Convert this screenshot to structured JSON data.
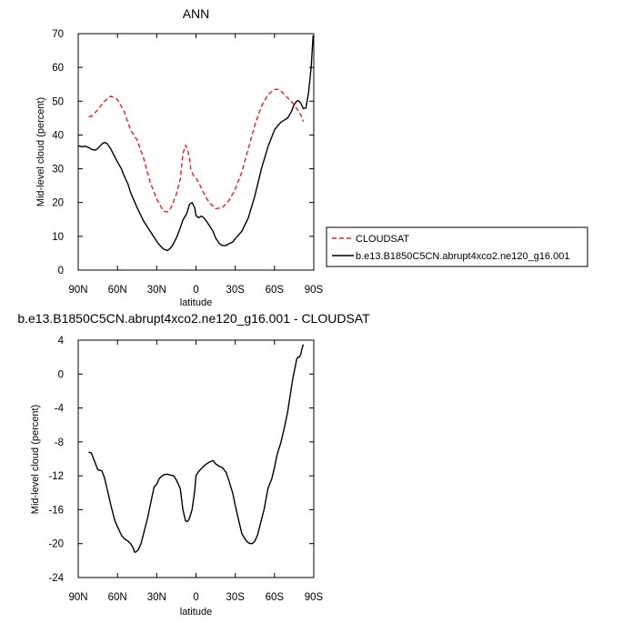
{
  "chart_data": [
    {
      "type": "line",
      "title": "ANN",
      "xlabel": "latitude",
      "ylabel": "Mid-level cloud (percent)",
      "xlim": [
        90,
        -90
      ],
      "ylim": [
        0,
        70
      ],
      "xticks": [
        90,
        60,
        30,
        0,
        -30,
        -60,
        -90
      ],
      "xtick_labels": [
        "90N",
        "60N",
        "30N",
        "0",
        "30S",
        "60S",
        "90S"
      ],
      "yticks": [
        0,
        10,
        20,
        30,
        40,
        50,
        60,
        70
      ],
      "ytick_labels": [
        "0",
        "10",
        "20",
        "30",
        "40",
        "50",
        "60",
        "70"
      ],
      "legend": "right",
      "series": [
        {
          "name": "CLOUDSAT",
          "color": "#e8221f",
          "dash": true,
          "x": [
            82,
            80,
            75,
            70,
            65,
            60,
            55,
            50,
            45,
            40,
            35,
            30,
            25,
            22,
            20,
            18,
            15,
            12,
            10,
            8,
            6,
            5,
            4,
            2,
            0,
            -2,
            -5,
            -8,
            -10,
            -15,
            -20,
            -25,
            -28,
            -30,
            -35,
            -40,
            -45,
            -50,
            -55,
            -60,
            -63,
            -65,
            -70,
            -75,
            -80,
            -82
          ],
          "y": [
            45.5,
            45.5,
            47.5,
            50,
            51.5,
            50.5,
            47,
            41.5,
            38.5,
            33,
            26,
            21,
            17.5,
            17.2,
            17.8,
            19.5,
            22.5,
            27,
            34.5,
            37,
            35,
            33,
            30,
            28,
            27.2,
            26,
            23.5,
            21.3,
            20,
            18.2,
            18.5,
            20.5,
            22.5,
            24,
            29,
            36,
            43,
            48.5,
            52,
            53.5,
            53.5,
            53,
            51,
            49,
            46,
            44
          ]
        },
        {
          "name": "b.e13.B1850C5CN.abrupt4xco2.ne120_g16.001",
          "color": "#000000",
          "dash": false,
          "x": [
            90,
            87,
            85,
            82,
            80,
            77,
            75,
            72,
            70,
            68,
            65,
            62,
            60,
            57,
            55,
            52,
            50,
            45,
            40,
            35,
            30,
            28,
            25,
            22,
            20,
            18,
            15,
            12,
            10,
            7,
            5,
            3,
            1,
            0,
            -2,
            -4,
            -6,
            -8,
            -10,
            -13,
            -15,
            -18,
            -20,
            -23,
            -25,
            -28,
            -30,
            -35,
            -40,
            -45,
            -50,
            -55,
            -60,
            -63,
            -65,
            -67,
            -70,
            -73,
            -75,
            -77,
            -78,
            -80,
            -82,
            -84,
            -86,
            -88,
            -89.5
          ],
          "y": [
            36.8,
            36.5,
            36.7,
            36.3,
            35.8,
            35.5,
            36.0,
            37.3,
            37.8,
            37.5,
            35.8,
            33.5,
            32.0,
            30.0,
            28.0,
            25.5,
            23.0,
            18.5,
            14.5,
            11.5,
            8.5,
            7.5,
            6.3,
            5.8,
            6.3,
            7.3,
            9.5,
            12.5,
            14.8,
            16.8,
            19.5,
            20.0,
            18.5,
            16.2,
            15.5,
            16.0,
            15.5,
            14.5,
            13.3,
            11.5,
            9.5,
            7.8,
            7.3,
            7.3,
            7.8,
            8.3,
            9.3,
            11.5,
            15.5,
            22.0,
            30.0,
            36.5,
            41.5,
            43.0,
            43.8,
            44.3,
            45.0,
            47.0,
            49.0,
            50.0,
            50.2,
            49.5,
            47.8,
            48.0,
            52.5,
            60.0,
            69.5
          ]
        }
      ]
    },
    {
      "type": "line",
      "title": "b.e13.B1850C5CN.abrupt4xco2.ne120_g16.001 - CLOUDSAT",
      "xlabel": "latitude",
      "ylabel": "Mid-level cloud (percent)",
      "xlim": [
        90,
        -90
      ],
      "ylim": [
        -24,
        4
      ],
      "xticks": [
        90,
        60,
        30,
        0,
        -30,
        -60,
        -90
      ],
      "xtick_labels": [
        "90N",
        "60N",
        "30N",
        "0",
        "30S",
        "60S",
        "90S"
      ],
      "yticks": [
        -24,
        -20,
        -16,
        -12,
        -8,
        -4,
        0,
        4
      ],
      "ytick_labels": [
        "-24",
        "-20",
        "-16",
        "-12",
        "-8",
        "-4",
        "0",
        "4"
      ],
      "series": [
        {
          "color": "#000000",
          "dash": false,
          "x": [
            82,
            80,
            77,
            75,
            72,
            70,
            68,
            65,
            62,
            60,
            57,
            55,
            52,
            50,
            48,
            47,
            46,
            44,
            42,
            40,
            37,
            35,
            32,
            30,
            28,
            25,
            22,
            20,
            17,
            15,
            12,
            10,
            8,
            7,
            6,
            5,
            3,
            1,
            0,
            -2,
            -5,
            -8,
            -10,
            -13,
            -15,
            -18,
            -20,
            -23,
            -25,
            -28,
            -30,
            -33,
            -35,
            -38,
            -40,
            -42,
            -43,
            -45,
            -47,
            -50,
            -52,
            -55,
            -58,
            -60,
            -62,
            -65,
            -68,
            -70,
            -72,
            -74,
            -76,
            -77,
            -78,
            -79,
            -80,
            -81,
            -82
          ],
          "y": [
            -9.2,
            -9.3,
            -10.5,
            -11.3,
            -11.4,
            -12.2,
            -13.5,
            -15.5,
            -17.3,
            -18.0,
            -19.0,
            -19.4,
            -19.7,
            -20.0,
            -20.5,
            -21.0,
            -21.0,
            -20.7,
            -20.0,
            -18.8,
            -17.0,
            -15.5,
            -13.3,
            -13.0,
            -12.3,
            -11.9,
            -11.8,
            -11.9,
            -12.0,
            -12.5,
            -13.5,
            -16.0,
            -17.3,
            -17.4,
            -17.3,
            -17.0,
            -16.0,
            -13.8,
            -12.0,
            -11.5,
            -11.0,
            -10.6,
            -10.4,
            -10.2,
            -10.6,
            -10.9,
            -11.0,
            -11.6,
            -12.5,
            -14.0,
            -15.5,
            -17.5,
            -18.8,
            -19.6,
            -19.9,
            -20.0,
            -20.0,
            -19.7,
            -19.0,
            -17.2,
            -16.0,
            -13.5,
            -12.3,
            -11.0,
            -9.5,
            -8.0,
            -6.0,
            -4.5,
            -2.5,
            -0.5,
            1.0,
            1.8,
            2.0,
            2.0,
            2.3,
            3.0,
            3.5
          ]
        }
      ]
    }
  ]
}
